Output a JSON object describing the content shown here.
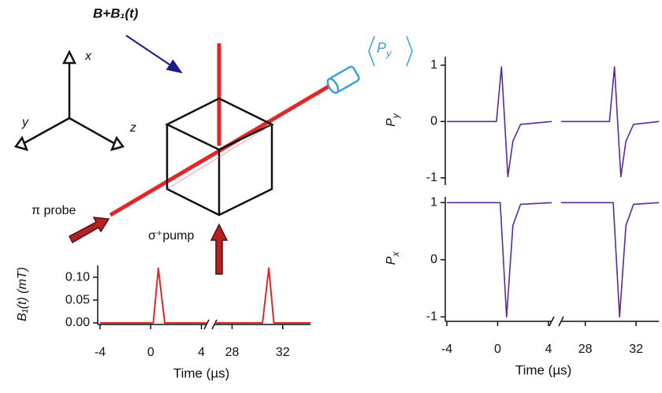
{
  "diagram": {
    "field_label": "B+B₁(t)",
    "axis_x": "x",
    "axis_y": "y",
    "axis_z": "z",
    "detector_label": "P",
    "detector_sub": "y",
    "probe_label": "π probe",
    "pump_label": "σ⁺pump"
  },
  "chart_data": [
    {
      "type": "line",
      "ylabel": "B₁(t) (mT)",
      "xlabel": "Time (µs)",
      "color": "#e0282a",
      "x": [
        -4,
        0.2,
        0.6,
        1.1,
        4.4,
        null,
        26.6,
        30.4,
        30.9,
        31.3,
        34.2
      ],
      "values": [
        0,
        0,
        0.12,
        0,
        0,
        null,
        0,
        0,
        0.12,
        0,
        0
      ],
      "xlim": [
        -4,
        34.2
      ],
      "xbreak": [
        4.4,
        26.6
      ],
      "xticks": [
        -4,
        0,
        4,
        28,
        32
      ],
      "ylim": [
        0,
        0.126
      ],
      "yticks": [
        {
          "value": 0,
          "label": "0.00"
        },
        {
          "value": 0.05,
          "label": "0.05"
        },
        {
          "value": 0.1,
          "label": "0.10"
        }
      ]
    },
    {
      "type": "line",
      "ylabel": "P",
      "ylabel_sub": "y",
      "color": "#5b2a9a",
      "xaxis": false,
      "x": [
        -4,
        -0.1,
        0.3,
        0.55,
        0.8,
        1.2,
        1.8,
        4.25,
        null,
        26.1,
        29.9,
        30.3,
        30.55,
        30.8,
        31.2,
        31.8,
        33.8
      ],
      "values": [
        0,
        0,
        0.97,
        0,
        -0.98,
        -0.35,
        -0.05,
        0,
        null,
        0,
        0,
        0.97,
        0,
        -0.98,
        -0.35,
        -0.05,
        0
      ],
      "xlim": [
        -4,
        33.8
      ],
      "xbreak": [
        4.25,
        26.1
      ],
      "ylim": [
        -1.1,
        1.15
      ],
      "yticks": [
        -1,
        0,
        1
      ]
    },
    {
      "type": "line",
      "ylabel": "P",
      "ylabel_sub": "x",
      "xlabel": "Time (µs)",
      "color": "#5b2a9a",
      "x": [
        -4,
        0.2,
        0.7,
        1.2,
        1.8,
        4.25,
        null,
        26.1,
        30.2,
        30.7,
        31.2,
        31.8,
        33.8
      ],
      "values": [
        1,
        1,
        -1,
        0.6,
        0.97,
        1,
        null,
        1,
        1,
        -1,
        0.6,
        0.97,
        1
      ],
      "xlim": [
        -4,
        33.8
      ],
      "xbreak": [
        4.25,
        26.1
      ],
      "xticks": [
        -4,
        0,
        4,
        28,
        32
      ],
      "ylim": [
        -1.05,
        1.1
      ],
      "yticks": [
        -1,
        0,
        1
      ]
    }
  ]
}
